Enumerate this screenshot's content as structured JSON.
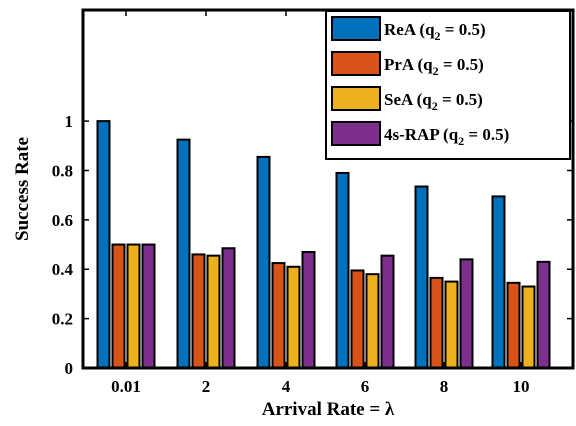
{
  "chart_data": {
    "type": "bar",
    "title": "",
    "xlabel": "Arrival Rate = λ",
    "ylabel": "Success Rate",
    "categories": [
      "0.01",
      "2",
      "4",
      "6",
      "8",
      "10"
    ],
    "ylim": [
      0,
      1.45
    ],
    "yticks": [
      "0",
      "0.2",
      "0.4",
      "0.6",
      "0.8",
      "1"
    ],
    "grid": false,
    "legend_position": "top-right",
    "series": [
      {
        "name": "ReA (q2 = 0.5)",
        "label_main": "ReA (q",
        "label_sub": "2",
        "label_tail": " = 0.5)",
        "color": "#0072BD",
        "values": [
          1.0,
          0.925,
          0.855,
          0.79,
          0.735,
          0.695
        ]
      },
      {
        "name": "PrA (q2 = 0.5)",
        "label_main": "PrA (q",
        "label_sub": "2",
        "label_tail": " = 0.5)",
        "color": "#D95319",
        "values": [
          0.5,
          0.46,
          0.425,
          0.395,
          0.365,
          0.345
        ]
      },
      {
        "name": "SeA (q2 = 0.5)",
        "label_main": "SeA (q",
        "label_sub": "2",
        "label_tail": " = 0.5)",
        "color": "#EDB120",
        "values": [
          0.5,
          0.455,
          0.41,
          0.38,
          0.35,
          0.33
        ]
      },
      {
        "name": "4s-RAP (q2 = 0.5)",
        "label_main": "4s-RAP (q",
        "label_sub": "2",
        "label_tail": " = 0.5)",
        "color": "#7E2F8E",
        "values": [
          0.5,
          0.485,
          0.47,
          0.455,
          0.44,
          0.43
        ]
      }
    ]
  }
}
